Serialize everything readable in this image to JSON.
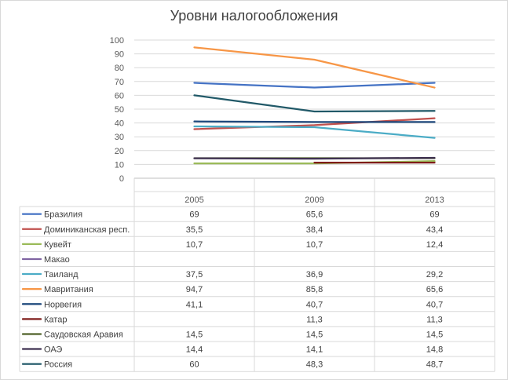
{
  "chart_data": {
    "type": "line",
    "title": "Уровни налогообложения",
    "categories": [
      "2005",
      "2009",
      "2013"
    ],
    "ylim": [
      0,
      100
    ],
    "yticks": [
      0,
      10,
      20,
      30,
      40,
      50,
      60,
      70,
      80,
      90,
      100
    ],
    "grid": true,
    "legend": "data-table-left",
    "series": [
      {
        "name": "Бразилия",
        "color": "#4472c4",
        "values": [
          69,
          65.6,
          69
        ],
        "labels": [
          "69",
          "65,6",
          "69"
        ]
      },
      {
        "name": "Доминиканская респ.",
        "color": "#c0504d",
        "values": [
          35.5,
          38.4,
          43.4
        ],
        "labels": [
          "35,5",
          "38,4",
          "43,4"
        ]
      },
      {
        "name": "Кувейт",
        "color": "#9bbb59",
        "values": [
          10.7,
          10.7,
          12.4
        ],
        "labels": [
          "10,7",
          "10,7",
          "12,4"
        ]
      },
      {
        "name": "Макао",
        "color": "#8064a2",
        "values": [
          null,
          null,
          null
        ],
        "labels": [
          "",
          "",
          ""
        ]
      },
      {
        "name": "Таиланд",
        "color": "#4bacc6",
        "values": [
          37.5,
          36.9,
          29.2
        ],
        "labels": [
          "37,5",
          "36,9",
          "29,2"
        ]
      },
      {
        "name": "Мавритания",
        "color": "#f79646",
        "values": [
          94.7,
          85.8,
          65.6
        ],
        "labels": [
          "94,7",
          "85,8",
          "65,6"
        ]
      },
      {
        "name": "Норвегия",
        "color": "#1f497d",
        "values": [
          41.1,
          40.7,
          40.7
        ],
        "labels": [
          "41,1",
          "40,7",
          "40,7"
        ]
      },
      {
        "name": "Катар",
        "color": "#7f1d1a",
        "values": [
          null,
          11.3,
          11.3
        ],
        "labels": [
          "",
          "11,3",
          "11,3"
        ]
      },
      {
        "name": "Саудовская Аравия",
        "color": "#4f6228",
        "values": [
          14.5,
          14.5,
          14.5
        ],
        "labels": [
          "14,5",
          "14,5",
          "14,5"
        ]
      },
      {
        "name": "ОАЭ",
        "color": "#3f3151",
        "values": [
          14.4,
          14.1,
          14.8
        ],
        "labels": [
          "14,4",
          "14,1",
          "14,8"
        ]
      },
      {
        "name": "Россия",
        "color": "#215968",
        "values": [
          60,
          48.3,
          48.7
        ],
        "labels": [
          "60",
          "48,3",
          "48,7"
        ]
      }
    ]
  }
}
